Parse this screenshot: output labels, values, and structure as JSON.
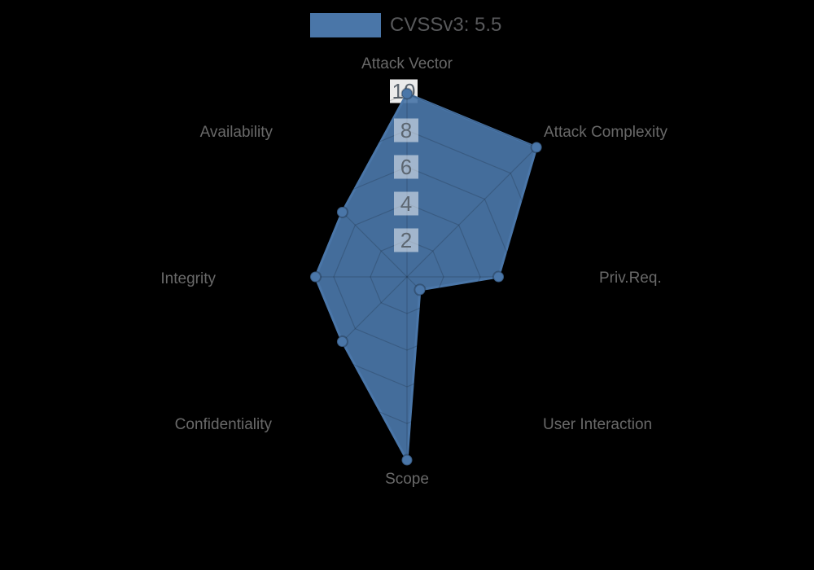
{
  "legend": {
    "label": "CVSSv3: 5.5"
  },
  "colors": {
    "background": "#000000",
    "series": "#4a76a8",
    "axis_label": "#696969",
    "tick_label": "#5c6670",
    "legend_text": "#58595b",
    "grid_line": "rgba(0,0,0,0.16)",
    "tick_box": "rgba(255,255,255,0.5)",
    "tick_box_outer": "rgba(255,255,255,0.92)"
  },
  "chart_data": {
    "type": "radar",
    "title": "CVSSv3: 5.5",
    "categories": [
      "Attack Vector",
      "Attack Complexity",
      "Priv.Req.",
      "User Interaction",
      "Scope",
      "Confidentiality",
      "Integrity",
      "Availability"
    ],
    "series": [
      {
        "name": "CVSSv3: 5.5",
        "values": [
          10,
          10,
          5,
          1,
          10,
          5,
          5,
          5
        ]
      }
    ],
    "radial_ticks": [
      2,
      4,
      6,
      8,
      10
    ],
    "rlim": [
      0,
      10
    ],
    "grid": true,
    "legend_position": "top-center",
    "marker": "circle"
  }
}
